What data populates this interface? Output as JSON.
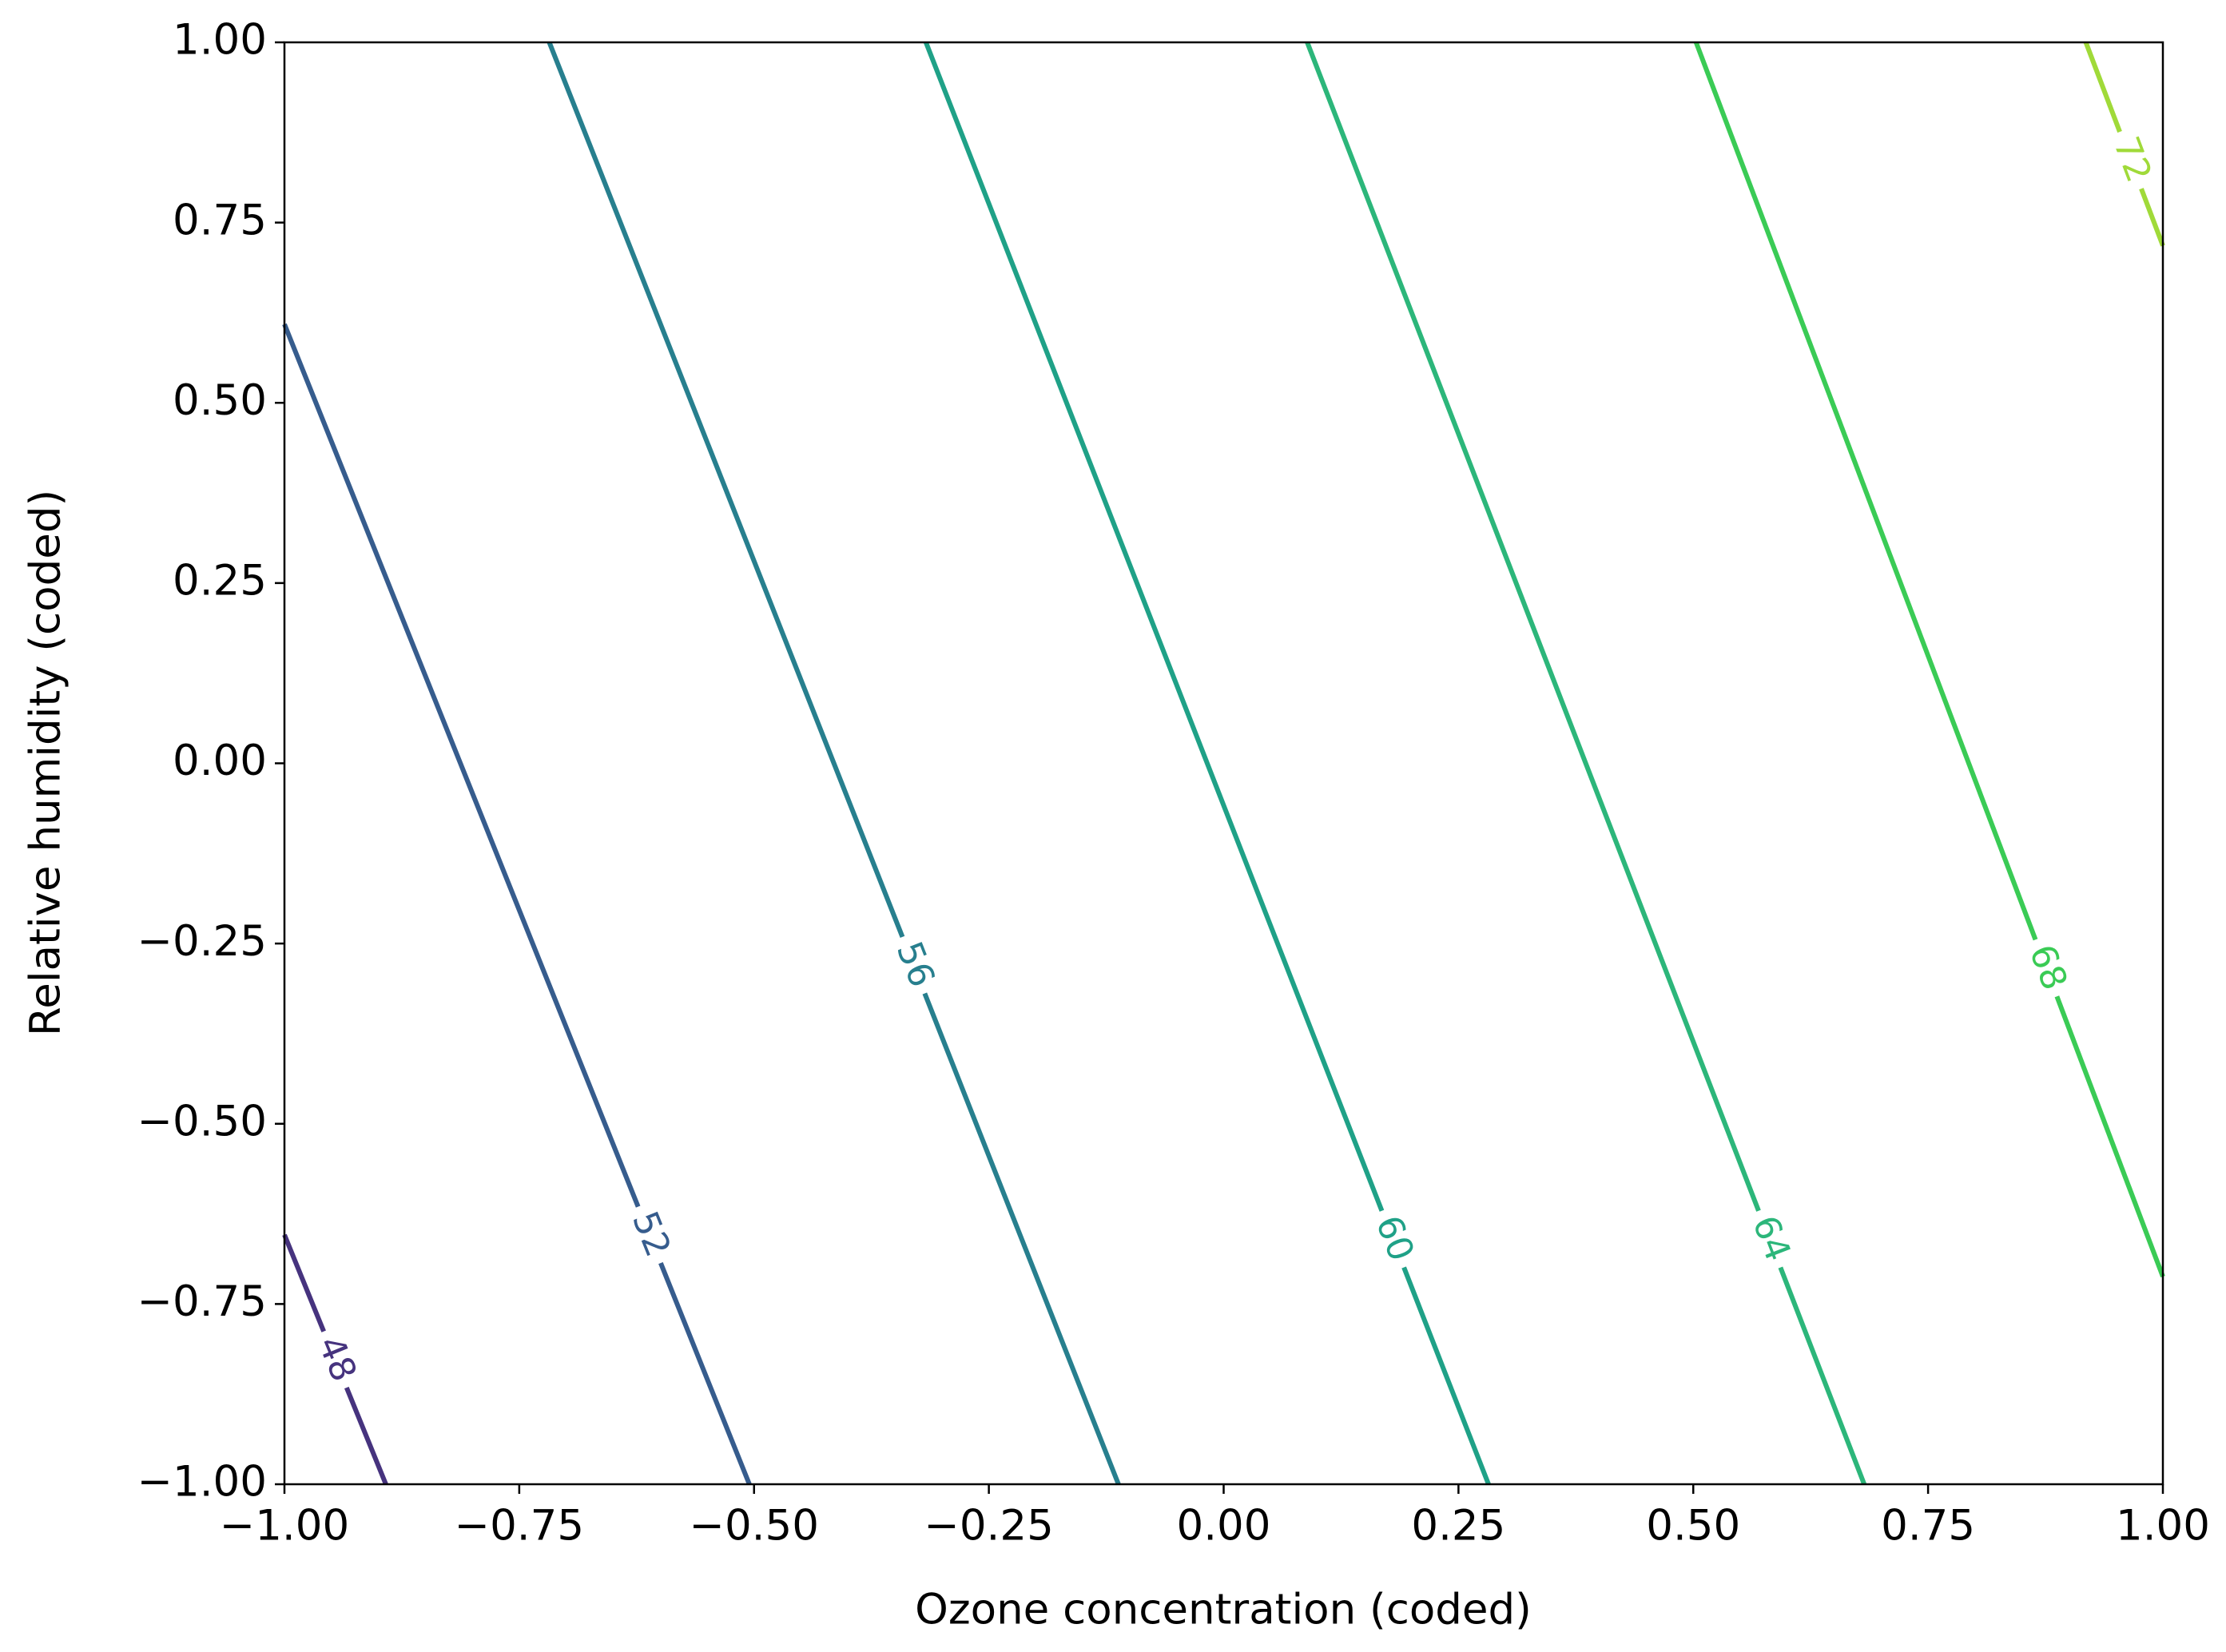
{
  "chart_data": {
    "type": "contour",
    "xlabel": "Ozone concentration (coded)",
    "ylabel": "Relative humidity (coded)",
    "xlim": [
      -1,
      1
    ],
    "ylim": [
      -1,
      1
    ],
    "xticks": [
      {
        "value": -1,
        "label": "−1.00"
      },
      {
        "value": -0.75,
        "label": "−0.75"
      },
      {
        "value": -0.5,
        "label": "−0.50"
      },
      {
        "value": -0.25,
        "label": "−0.25"
      },
      {
        "value": 0,
        "label": "0.00"
      },
      {
        "value": 0.25,
        "label": "0.25"
      },
      {
        "value": 0.5,
        "label": "0.50"
      },
      {
        "value": 0.75,
        "label": "0.75"
      },
      {
        "value": 1,
        "label": "1.00"
      }
    ],
    "yticks": [
      {
        "value": -1,
        "label": "−1.00"
      },
      {
        "value": -0.75,
        "label": "−0.75"
      },
      {
        "value": -0.5,
        "label": "−0.50"
      },
      {
        "value": -0.25,
        "label": "−0.25"
      },
      {
        "value": 0,
        "label": "0.00"
      },
      {
        "value": 0.25,
        "label": "0.25"
      },
      {
        "value": 0.5,
        "label": "0.50"
      },
      {
        "value": 0.75,
        "label": "0.75"
      },
      {
        "value": 1,
        "label": "1.00"
      }
    ],
    "series": [
      {
        "level": 48,
        "color": "#46337e",
        "x": [
          -1,
          -0.892
        ],
        "y": [
          -0.654,
          -1
        ]
      },
      {
        "level": 52,
        "color": "#365c8d",
        "x": [
          -1,
          -0.505
        ],
        "y": [
          0.609,
          -1
        ]
      },
      {
        "level": 56,
        "color": "#277f8e",
        "x": [
          -0.718,
          -0.112
        ],
        "y": [
          1,
          -1
        ]
      },
      {
        "level": 60,
        "color": "#1fa187",
        "x": [
          -0.317,
          0.282
        ],
        "y": [
          1,
          -1
        ]
      },
      {
        "level": 64,
        "color": "#2cb67a",
        "x": [
          0.089,
          0.682
        ],
        "y": [
          1,
          -1
        ]
      },
      {
        "level": 68,
        "color": "#3acb55",
        "x": [
          0.503,
          1
        ],
        "y": [
          1,
          -0.712
        ]
      },
      {
        "level": 72,
        "color": "#a0da39",
        "x": [
          0.918,
          1
        ],
        "y": [
          1,
          0.718
        ]
      }
    ]
  }
}
